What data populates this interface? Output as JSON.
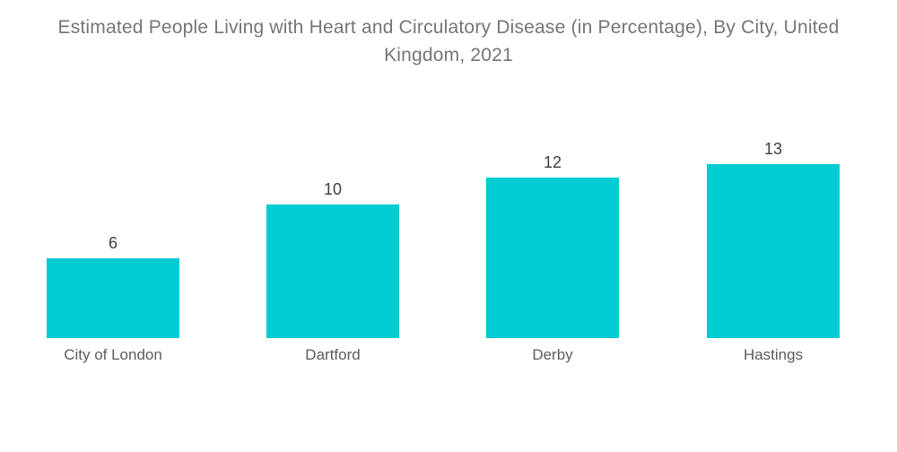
{
  "header": {
    "title_lines": [
      "Estimated People Living with Heart and Circulatory Disease (in Percentage), By City, United",
      "Kingdom, 2021"
    ]
  },
  "chart_data": {
    "type": "bar",
    "title": "Estimated People Living with Heart and Circulatory Disease (in Percentage), By City, United Kingdom, 2021",
    "categories": [
      "City of London",
      "Dartford",
      "Derby",
      "Hastings"
    ],
    "values": [
      6,
      10,
      12,
      13
    ],
    "value_labels": [
      "6",
      "10",
      "12",
      "13"
    ],
    "xlabel": "",
    "ylabel": "",
    "ylim": [
      0,
      13
    ],
    "grid": false,
    "legend": false,
    "axes_shown": false,
    "value_labels_shown": true,
    "bar_color": "#00ccd2"
  },
  "colors": {
    "bar": "#00ccd2",
    "title_text": "#757575",
    "value_text": "#3d3d3d",
    "category_text": "#5c5c5c",
    "background": "#ffffff"
  }
}
